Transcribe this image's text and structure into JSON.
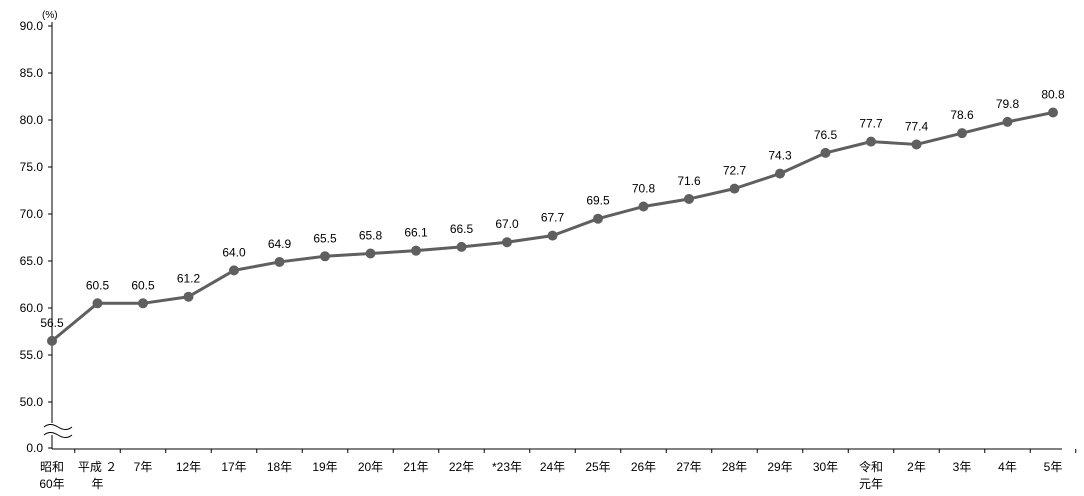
{
  "chart_data": {
    "type": "line",
    "unit": "(%)",
    "y_ticks": [
      "0.0",
      "50.0",
      "55.0",
      "60.0",
      "65.0",
      "70.0",
      "75.0",
      "80.0",
      "85.0",
      "90.0"
    ],
    "y_break": "≈",
    "ylim": [
      50,
      90
    ],
    "categories": [
      [
        "昭和",
        "60年"
      ],
      [
        "平成 ２",
        "年"
      ],
      [
        "7年"
      ],
      [
        "12年"
      ],
      [
        "17年"
      ],
      [
        "18年"
      ],
      [
        "19年"
      ],
      [
        "20年"
      ],
      [
        "21年"
      ],
      [
        "22年"
      ],
      [
        "*23年"
      ],
      [
        "24年"
      ],
      [
        "25年"
      ],
      [
        "26年"
      ],
      [
        "27年"
      ],
      [
        "28年"
      ],
      [
        "29年"
      ],
      [
        "30年"
      ],
      [
        "令和",
        "元年"
      ],
      [
        "2年"
      ],
      [
        "3年"
      ],
      [
        "4年"
      ],
      [
        "5年"
      ]
    ],
    "series": [
      {
        "values": [
          56.5,
          60.5,
          60.5,
          61.2,
          64.0,
          64.9,
          65.5,
          65.8,
          66.1,
          66.5,
          67.0,
          67.7,
          69.5,
          70.8,
          71.6,
          72.7,
          74.3,
          76.5,
          77.7,
          77.4,
          78.6,
          79.8,
          80.8
        ],
        "labels": [
          "56.5",
          "60.5",
          "60.5",
          "61.2",
          "64.0",
          "64.9",
          "65.5",
          "65.8",
          "66.1",
          "66.5",
          "67.0",
          "67.7",
          "69.5",
          "70.8",
          "71.6",
          "72.7",
          "74.3",
          "76.5",
          "77.7",
          "77.4",
          "78.6",
          "79.8",
          "80.8"
        ]
      }
    ],
    "line_color": "#5f5f5f",
    "grid": false,
    "legend": "none"
  }
}
